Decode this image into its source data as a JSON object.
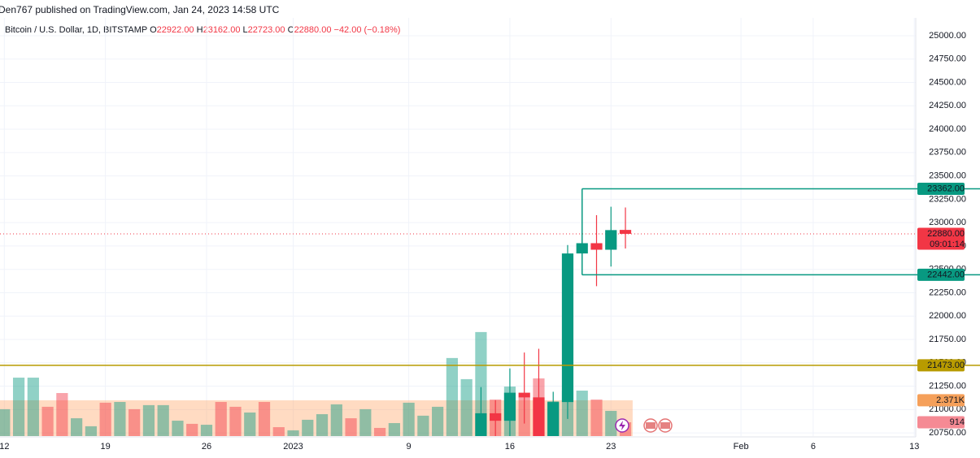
{
  "header": {
    "published": "Den767 published on TradingView.com, Jan 24, 2023 14:58 UTC"
  },
  "legend": {
    "symbol": "Bitcoin / U.S. Dollar, 1D, BITSTAMP",
    "items": [
      {
        "key": "O",
        "value": "22922.00"
      },
      {
        "key": "H",
        "value": "23162.00"
      },
      {
        "key": "L",
        "value": "22723.00"
      },
      {
        "key": "C",
        "value": "22880.00"
      }
    ],
    "change": "−42.00 (−0.18%)"
  },
  "chart_data": {
    "type": "candlestick",
    "up_color": "#089981",
    "down_color": "#f23645",
    "grid": true,
    "xlim": [
      -0.3,
      63.1
    ],
    "xticks": [
      {
        "value": 0,
        "label": "12"
      },
      {
        "value": 7,
        "label": "19"
      },
      {
        "value": 14,
        "label": "26"
      },
      {
        "value": 20,
        "label": "2023"
      },
      {
        "value": 28,
        "label": "9"
      },
      {
        "value": 35,
        "label": "16"
      },
      {
        "value": 42,
        "label": "23"
      },
      {
        "value": 51,
        "label": "Feb"
      },
      {
        "value": 56,
        "label": "6"
      },
      {
        "value": 63,
        "label": "13"
      }
    ],
    "ylim": [
      20716,
      25191
    ],
    "yticks": [
      {
        "value": 20750,
        "label": "20750.00"
      },
      {
        "value": 21000,
        "label": "21000.00"
      },
      {
        "value": 21250,
        "label": "21250.00"
      },
      {
        "value": 21500,
        "label": "21500.00"
      },
      {
        "value": 21750,
        "label": "21750.00"
      },
      {
        "value": 22000,
        "label": "22000.00"
      },
      {
        "value": 22250,
        "label": "22250.00"
      },
      {
        "value": 22500,
        "label": "22500.00"
      },
      {
        "value": 22750,
        "label": "22750.00"
      },
      {
        "value": 23000,
        "label": "23000.00"
      },
      {
        "value": 23250,
        "label": "23250.00"
      },
      {
        "value": 23500,
        "label": "23500.00"
      },
      {
        "value": 23750,
        "label": "23750.00"
      },
      {
        "value": 24000,
        "label": "24000.00"
      },
      {
        "value": 24250,
        "label": "24250.00"
      },
      {
        "value": 24500,
        "label": "24500.00"
      },
      {
        "value": 24750,
        "label": "24750.00"
      },
      {
        "value": 25000,
        "label": "25000.00"
      }
    ],
    "candles": {
      "x": [
        33,
        34,
        35,
        36,
        37,
        38,
        39,
        40,
        41,
        42,
        43
      ],
      "open": [
        20710,
        20960,
        20880,
        21180,
        21130,
        20690,
        21080,
        22670,
        22780,
        22710,
        22922
      ],
      "high": [
        21240,
        21100,
        21440,
        21610,
        21650,
        21190,
        22760,
        23362,
        23080,
        23170,
        23162
      ],
      "low": [
        20600,
        20700,
        20600,
        20850,
        20600,
        20600,
        20900,
        22442,
        22320,
        22530,
        22723
      ],
      "close": [
        20960,
        20880,
        21180,
        21130,
        20690,
        21080,
        22670,
        22780,
        22710,
        22920,
        22880
      ]
    },
    "volume": {
      "ylim": [
        0,
        27700
      ],
      "up_color": "rgba(8,153,129,0.45)",
      "down_color": "rgba(242,54,69,0.45)",
      "x": [
        0,
        1,
        2,
        3,
        4,
        5,
        6,
        7,
        8,
        9,
        10,
        11,
        12,
        13,
        14,
        15,
        16,
        17,
        18,
        19,
        20,
        21,
        22,
        23,
        24,
        25,
        26,
        27,
        28,
        29,
        30,
        31,
        32,
        33,
        34,
        35,
        36,
        37,
        38,
        39,
        40,
        41,
        42,
        43
      ],
      "values": [
        1780,
        3870,
        3870,
        1940,
        2850,
        1180,
        650,
        2210,
        2260,
        1780,
        2050,
        2050,
        1020,
        810,
        750,
        2260,
        1940,
        1560,
        2260,
        590,
        380,
        1080,
        1450,
        2100,
        1180,
        1780,
        540,
        860,
        2210,
        1350,
        1940,
        5170,
        3770,
        6890,
        2420,
        3280,
        2580,
        3820,
        2310,
        3010,
        3010,
        2420,
        1670,
        914
      ],
      "up": [
        true,
        true,
        true,
        false,
        false,
        true,
        true,
        false,
        true,
        false,
        true,
        true,
        true,
        false,
        true,
        false,
        false,
        true,
        false,
        false,
        true,
        true,
        true,
        true,
        false,
        true,
        false,
        true,
        true,
        true,
        true,
        true,
        true,
        true,
        false,
        true,
        false,
        false,
        true,
        true,
        true,
        false,
        true,
        false
      ],
      "last_label": "914",
      "ma": {
        "value": 2371,
        "label": "2.371K",
        "color": "rgba(255,152,80,0.35)",
        "tag_color": "#f5a05a"
      }
    },
    "levels": [
      {
        "value": 23362,
        "label": "23362.00",
        "color": "#089981"
      },
      {
        "value": 22442,
        "label": "22442.00",
        "color": "#089981"
      },
      {
        "value": 21473,
        "label": "21473.00",
        "color": "#b89b00"
      }
    ],
    "box_start": 40,
    "last_price": {
      "value": 22880,
      "label": "22880.00",
      "countdown": "09:01:14"
    }
  }
}
